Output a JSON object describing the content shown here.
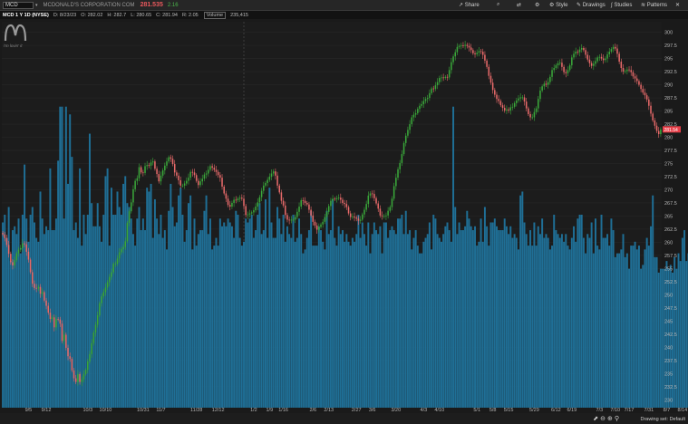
{
  "header": {
    "symbol": "MCD",
    "company": "MCDONALD'S CORPORATION COM",
    "last_price": "281.535",
    "change": "2.16"
  },
  "toolbar": {
    "share": "Share",
    "style": "Style",
    "drawings": "Drawings",
    "studies": "Studies",
    "patterns": "Patterns",
    "icons": [
      "share-icon",
      "gear-icon",
      "drawings-icon",
      "studies-icon",
      "patterns-icon",
      "close-icon"
    ]
  },
  "infobar": {
    "title": "MCD 1 Y 1D (NYSE)",
    "date": "D: 8/23/23",
    "open": "O: 282.02",
    "high": "H: 282.7",
    "low": "L: 280.65",
    "close": "C: 281.94",
    "range": "R: 2.05",
    "volume_label": "Volume",
    "volume": "235,415"
  },
  "logo": {
    "label": "i'm lovin' it"
  },
  "footer": {
    "drawing_set": "Drawing set: Default"
  },
  "colors": {
    "up": "#3aa83a",
    "down": "#e86a6a",
    "volume": "#1f6f96",
    "price_tag": "#e8404a"
  },
  "chart_data": {
    "type": "candlestick",
    "ylim": [
      228.5,
      302
    ],
    "yticks": [
      230,
      232.5,
      235,
      237.5,
      240,
      242.5,
      245,
      247.5,
      250,
      252.5,
      255,
      257.5,
      260,
      262.5,
      265,
      267.5,
      270,
      272.5,
      275,
      277.5,
      280,
      282.5,
      285,
      287.5,
      290,
      292.5,
      295,
      297.5,
      300
    ],
    "x_tick_labels": [
      "9/5",
      "9/12",
      "10/3",
      "10/10",
      "10/31",
      "11/7",
      "11/28",
      "12/12",
      "1/2",
      "1/9",
      "1/16",
      "2/6",
      "2/13",
      "2/27",
      "3/6",
      "3/20",
      "4/3",
      "4/10",
      "5/1",
      "5/8",
      "5/15",
      "5/29",
      "6/12",
      "6/19",
      "7/3",
      "7/10",
      "7/17",
      "7/31",
      "8/7",
      "8/14"
    ],
    "x_tick_index": [
      13,
      22,
      43,
      52,
      71,
      80,
      98,
      109,
      127,
      135,
      142,
      157,
      165,
      179,
      187,
      199,
      213,
      221,
      240,
      248,
      256,
      269,
      280,
      288,
      302,
      310,
      317,
      327,
      336,
      344
    ],
    "current_price": "281.54",
    "closes": [
      261.5,
      260.8,
      259.5,
      257.8,
      256.2,
      255.6,
      256.6,
      257.9,
      258.6,
      258.9,
      259.8,
      259.6,
      258.2,
      256.7,
      254.3,
      252.1,
      251.3,
      251.2,
      251.5,
      250.2,
      250.5,
      248.9,
      247.9,
      246.6,
      245.4,
      245.7,
      243.8,
      245.4,
      245.3,
      244.5,
      241.2,
      242.4,
      239.9,
      238.3,
      237.8,
      235.6,
      234.1,
      233.4,
      234.9,
      233.4,
      233.9,
      234.9,
      235.7,
      237.3,
      238.7,
      240.8,
      242.8,
      244.3,
      246.1,
      248.4,
      249.7,
      250.5,
      251.4,
      252.4,
      253.4,
      254.3,
      255.9,
      255.9,
      256.9,
      258.1,
      258.7,
      259.1,
      260.2,
      263.7,
      265.9,
      267.6,
      270.1,
      271.7,
      272.2,
      274.3,
      273.3,
      273.2,
      274.5,
      274.7,
      274.6,
      275.2,
      275.4,
      274.0,
      273.0,
      271.6,
      272.7,
      273.7,
      274.6,
      275.4,
      276.2,
      275.9,
      274.9,
      273.3,
      272.7,
      271.8,
      270.8,
      270.8,
      271.2,
      271.7,
      272.3,
      273.4,
      273.3,
      272.8,
      271.7,
      270.9,
      271.6,
      272.1,
      272.9,
      273.1,
      273.8,
      274.5,
      274.2,
      273.8,
      273.4,
      272.8,
      272.3,
      270.6,
      269.3,
      268.3,
      267.1,
      266.8,
      267.5,
      268.1,
      268.0,
      268.3,
      268.5,
      268.3,
      266.9,
      265.2,
      265.3,
      265.5,
      265.7,
      266.1,
      266.8,
      267.6,
      268.6,
      269.8,
      270.8,
      271.3,
      271.9,
      272.5,
      273.1,
      273.5,
      272.7,
      270.8,
      269.5,
      267.9,
      267.0,
      265.2,
      264.3,
      264.2,
      264.3,
      264.3,
      264.8,
      265.8,
      266.8,
      268.0,
      267.9,
      267.5,
      267.2,
      266.2,
      265.1,
      263.9,
      263.2,
      262.4,
      262.9,
      263.4,
      263.9,
      264.8,
      265.8,
      266.9,
      267.9,
      268.3,
      268.2,
      268.4,
      268.5,
      268.1,
      267.5,
      267.3,
      266.7,
      265.5,
      264.8,
      264.9,
      264.7,
      264.5,
      264.1,
      264.3,
      265.3,
      266.2,
      267.3,
      268.9,
      269.3,
      269.2,
      268.4,
      267.4,
      266.4,
      265.1,
      265.0,
      265.0,
      265.1,
      266.0,
      266.7,
      268.3,
      270.7,
      272.3,
      273.9,
      275.1,
      276.8,
      278.9,
      280.3,
      281.4,
      282.5,
      283.8,
      284.3,
      284.6,
      285.4,
      286.0,
      286.3,
      286.9,
      287.3,
      287.5,
      288.4,
      289.3,
      289.2,
      289.9,
      290.5,
      291.3,
      291.4,
      291.3,
      291.5,
      291.4,
      292.8,
      294.3,
      295.4,
      296.2,
      297.2,
      297.4,
      297.5,
      297.4,
      297.6,
      297.4,
      297.1,
      296.6,
      296.0,
      295.8,
      296.1,
      296.4,
      296.3,
      295.7,
      294.6,
      293.4,
      291.7,
      290.4,
      289.0,
      288.1,
      287.3,
      286.9,
      286.1,
      285.6,
      285.1,
      285.3,
      285.1,
      285.7,
      285.8,
      286.5,
      287.0,
      287.4,
      287.6,
      287.6,
      286.8,
      285.5,
      284.4,
      283.8,
      283.8,
      284.8,
      285.5,
      287.3,
      288.9,
      289.7,
      290.2,
      290.0,
      290.5,
      291.5,
      292.8,
      293.2,
      293.7,
      294.1,
      294.2,
      293.4,
      292.4,
      292.2,
      292.8,
      293.7,
      295.2,
      295.9,
      296.3,
      296.2,
      296.7,
      297.0,
      296.6,
      295.7,
      294.8,
      294.1,
      293.6,
      294.0,
      294.5,
      295.2,
      295.3,
      295.0,
      294.7,
      295.0,
      295.8,
      296.3,
      296.8,
      297.2,
      296.9,
      295.9,
      294.4,
      293.2,
      292.5,
      292.6,
      292.9,
      292.8,
      292.4,
      291.6,
      291.2,
      290.7,
      290.0,
      289.2,
      288.5,
      288.0,
      287.2,
      286.0,
      284.5,
      283.2,
      282.2,
      281.2,
      280.6,
      281.5
    ],
    "volume_fraction": [
      0.48,
      0.5,
      0.44,
      0.52,
      0.38,
      0.46,
      0.47,
      0.45,
      0.49,
      0.4,
      0.5,
      0.63,
      0.49,
      0.43,
      0.5,
      0.52,
      0.48,
      0.44,
      0.43,
      0.56,
      0.49,
      0.45,
      0.47,
      0.46,
      0.62,
      0.46,
      0.46,
      0.49,
      0.64,
      0.78,
      0.78,
      0.49,
      0.78,
      0.58,
      0.76,
      0.65,
      0.46,
      0.48,
      0.44,
      0.62,
      0.42,
      0.5,
      0.45,
      0.5,
      0.71,
      0.53,
      0.47,
      0.47,
      0.53,
      0.47,
      0.43,
      0.5,
      0.6,
      0.62,
      0.42,
      0.57,
      0.5,
      0.5,
      0.56,
      0.52,
      0.5,
      0.58,
      0.6,
      0.53,
      0.52,
      0.49,
      0.45,
      0.42,
      0.49,
      0.52,
      0.46,
      0.49,
      0.46,
      0.57,
      0.56,
      0.58,
      0.44,
      0.54,
      0.49,
      0.45,
      0.5,
      0.44,
      0.46,
      0.41,
      0.51,
      0.58,
      0.52,
      0.47,
      0.48,
      0.55,
      0.57,
      0.5,
      0.43,
      0.46,
      0.53,
      0.55,
      0.41,
      0.49,
      0.42,
      0.45,
      0.46,
      0.46,
      0.51,
      0.55,
      0.45,
      0.49,
      0.41,
      0.42,
      0.44,
      0.42,
      0.49,
      0.47,
      0.48,
      0.47,
      0.49,
      0.48,
      0.47,
      0.44,
      0.51,
      0.5,
      0.44,
      0.42,
      0.43,
      0.49,
      0.48,
      0.49,
      0.5,
      0.44,
      0.46,
      0.5,
      0.53,
      0.45,
      0.46,
      0.54,
      0.44,
      0.57,
      0.48,
      0.44,
      0.44,
      0.52,
      0.49,
      0.45,
      0.5,
      0.43,
      0.47,
      0.45,
      0.44,
      0.5,
      0.43,
      0.44,
      0.49,
      0.45,
      0.4,
      0.41,
      0.44,
      0.46,
      0.51,
      0.42,
      0.42,
      0.42,
      0.47,
      0.46,
      0.43,
      0.41,
      0.51,
      0.45,
      0.46,
      0.54,
      0.44,
      0.42,
      0.47,
      0.45,
      0.46,
      0.43,
      0.45,
      0.43,
      0.42,
      0.44,
      0.43,
      0.45,
      0.5,
      0.44,
      0.48,
      0.45,
      0.42,
      0.48,
      0.4,
      0.45,
      0.48,
      0.46,
      0.45,
      0.47,
      0.4,
      0.48,
      0.48,
      0.44,
      0.46,
      0.47,
      0.46,
      0.45,
      0.49,
      0.49,
      0.5,
      0.45,
      0.51,
      0.45,
      0.46,
      0.41,
      0.44,
      0.46,
      0.42,
      0.4,
      0.4,
      0.43,
      0.44,
      0.45,
      0.48,
      0.41,
      0.5,
      0.49,
      0.45,
      0.44,
      0.43,
      0.45,
      0.47,
      0.48,
      0.46,
      0.43,
      0.78,
      0.52,
      0.45,
      0.48,
      0.46,
      0.46,
      0.47,
      0.51,
      0.49,
      0.47,
      0.46,
      0.47,
      0.42,
      0.43,
      0.49,
      0.43,
      0.52,
      0.47,
      0.42,
      0.48,
      0.48,
      0.49,
      0.47,
      0.46,
      0.46,
      0.46,
      0.49,
      0.47,
      0.45,
      0.47,
      0.44,
      0.45,
      0.44,
      0.41,
      0.55,
      0.56,
      0.48,
      0.45,
      0.42,
      0.46,
      0.42,
      0.48,
      0.42,
      0.47,
      0.45,
      0.49,
      0.44,
      0.45,
      0.44,
      0.41,
      0.42,
      0.5,
      0.46,
      0.45,
      0.44,
      0.45,
      0.43,
      0.45,
      0.42,
      0.41,
      0.44,
      0.47,
      0.43,
      0.49,
      0.5,
      0.5,
      0.44,
      0.4,
      0.45,
      0.44,
      0.48,
      0.4,
      0.49,
      0.42,
      0.41,
      0.5,
      0.44,
      0.44,
      0.45,
      0.42,
      0.49,
      0.46,
      0.39,
      0.4,
      0.4,
      0.41,
      0.45,
      0.39,
      0.4,
      0.36,
      0.42,
      0.42,
      0.43,
      0.41,
      0.42,
      0.36,
      0.37,
      0.41,
      0.44,
      0.42,
      0.47,
      0.55,
      0.39,
      0.39,
      0.35,
      0.36,
      0.36,
      0.36,
      0.38,
      0.36,
      0.37,
      0.35,
      0.39,
      0.36,
      0.4,
      0.38,
      0.44,
      0.46,
      0.38,
      0.4,
      0.38,
      0.37,
      0.48,
      0.55,
      0.38,
      0.47,
      0.45,
      0.4,
      0.37,
      0.42,
      0.4,
      0.37,
      0.37,
      0.38,
      0.47,
      0.42,
      0.46,
      0.4,
      0.39,
      0.39,
      0.42,
      0.39,
      0.36,
      0.43,
      0.49,
      0.43,
      0.39,
      0.38,
      0.46,
      0.47,
      0.36,
      0.36,
      0.36,
      0.35,
      0.45,
      0.47,
      0.36,
      0.34,
      0.4,
      0.41
    ]
  }
}
